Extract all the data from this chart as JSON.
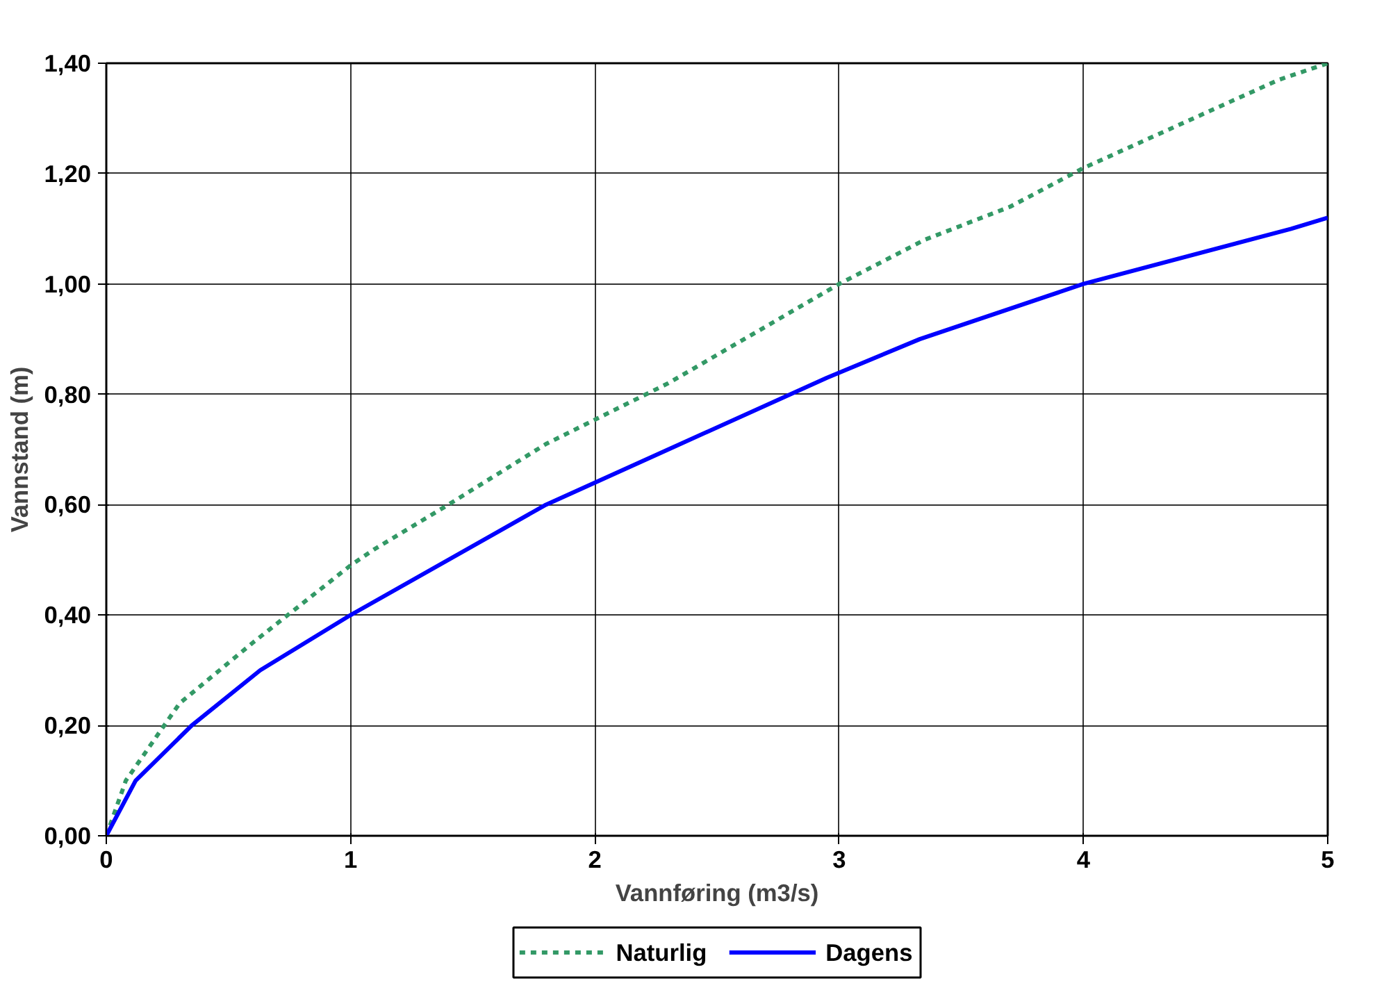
{
  "chart_data": {
    "type": "line",
    "xlabel": "Vannføring (m3/s)",
    "ylabel": "Vannstand (m)",
    "xlim": [
      0,
      5
    ],
    "xticks": [
      0,
      1,
      2,
      3,
      4,
      5
    ],
    "ylim": [
      0,
      1.4
    ],
    "yticks": [
      {
        "value": 0,
        "label": "0,00"
      },
      {
        "value": 0.2,
        "label": "0,20"
      },
      {
        "value": 0.4,
        "label": "0,40"
      },
      {
        "value": 0.6,
        "label": "0,60"
      },
      {
        "value": 0.8,
        "label": "0,80"
      },
      {
        "value": 1.0,
        "label": "1,00"
      },
      {
        "value": 1.2,
        "label": "1,20"
      },
      {
        "value": 1.4,
        "label": "1,40"
      }
    ],
    "grid": true,
    "legend": "bottom",
    "marker": "none",
    "series": [
      {
        "name": "Naturlig",
        "color": "#339966",
        "line_style": "dashed",
        "x": [
          0,
          0.08,
          0.3,
          0.6,
          1.0,
          1.1,
          1.4,
          1.8,
          2.3,
          3.0,
          3.35,
          3.7,
          4.0,
          4.5,
          4.8,
          5.0
        ],
        "values": [
          0,
          0.1,
          0.24,
          0.35,
          0.49,
          0.52,
          0.6,
          0.71,
          0.82,
          1.0,
          1.08,
          1.14,
          1.21,
          1.31,
          1.37,
          1.4
        ]
      },
      {
        "name": "Dagens",
        "color": "#0000ff",
        "line_style": "solid",
        "x": [
          0,
          0.12,
          0.35,
          0.63,
          1.0,
          1.8,
          2.3,
          2.95,
          3.33,
          4.0,
          4.85,
          5.0
        ],
        "values": [
          0,
          0.1,
          0.2,
          0.3,
          0.4,
          0.6,
          0.7,
          0.83,
          0.9,
          1.0,
          1.1,
          1.12
        ]
      }
    ]
  }
}
